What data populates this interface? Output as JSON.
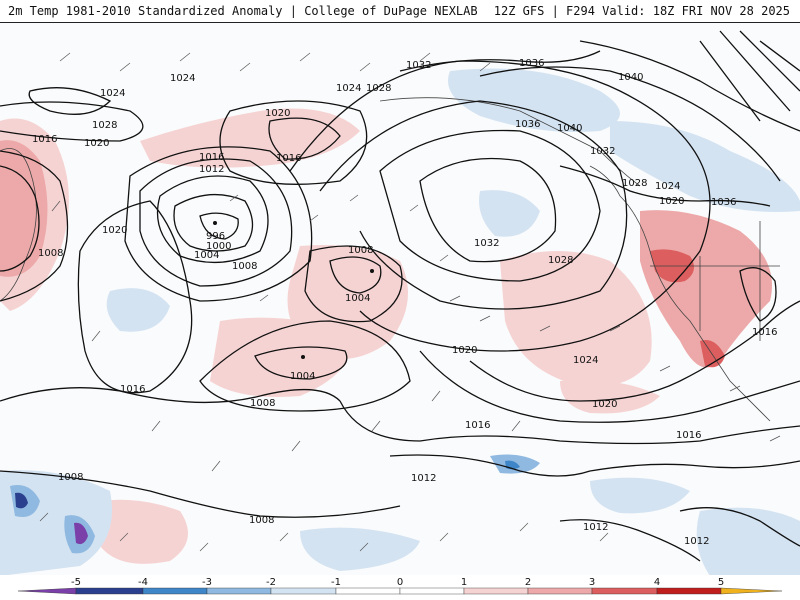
{
  "header": {
    "title": "2m Temp 1981-2010 Standardized Anomaly | College of DuPage NEXLAB",
    "run_info": "12Z GFS | F294 Valid: 18Z FRI NOV 28 2025"
  },
  "colors": {
    "neg5": "#7a3fa8",
    "neg4": "#2b3f8f",
    "neg3": "#3f86c9",
    "neg2": "#8fb9e0",
    "neg1": "#d4e3f2",
    "zero": "#ffffff",
    "pos1": "#f6d3d3",
    "pos2": "#eda9a9",
    "pos3": "#dc5e5e",
    "pos4": "#c01d1d",
    "pos5": "#8e0c0c",
    "pos6": "#f0b21c"
  },
  "isobars": [
    {
      "label": "1024"
    },
    {
      "label": "1024"
    },
    {
      "label": "1028"
    },
    {
      "label": "1016"
    },
    {
      "label": "1020"
    },
    {
      "label": "1024"
    },
    {
      "label": "1028"
    },
    {
      "label": "1020"
    },
    {
      "label": "1016"
    },
    {
      "label": "1016"
    },
    {
      "label": "1012"
    },
    {
      "label": "996"
    },
    {
      "label": "1000"
    },
    {
      "label": "1004"
    },
    {
      "label": "1008"
    },
    {
      "label": "1020"
    },
    {
      "label": "1008"
    },
    {
      "label": "1008"
    },
    {
      "label": "1004"
    },
    {
      "label": "1004"
    },
    {
      "label": "1008"
    },
    {
      "label": "1016"
    },
    {
      "label": "1032"
    },
    {
      "label": "1036"
    },
    {
      "label": "1040"
    },
    {
      "label": "1036"
    },
    {
      "label": "1040"
    },
    {
      "label": "1032"
    },
    {
      "label": "1028"
    },
    {
      "label": "1024"
    },
    {
      "label": "1020"
    },
    {
      "label": "1036"
    },
    {
      "label": "1032"
    },
    {
      "label": "1028"
    },
    {
      "label": "1020"
    },
    {
      "label": "1024"
    },
    {
      "label": "1020"
    },
    {
      "label": "1016"
    },
    {
      "label": "1016"
    },
    {
      "label": "1016"
    },
    {
      "label": "1008"
    },
    {
      "label": "1012"
    },
    {
      "label": "1008"
    },
    {
      "label": "1012"
    },
    {
      "label": "1012"
    }
  ],
  "legend": {
    "ticks": [
      "-5",
      "-4",
      "-3",
      "-2",
      "-1",
      "0",
      "1",
      "2",
      "3",
      "4",
      "5"
    ]
  }
}
